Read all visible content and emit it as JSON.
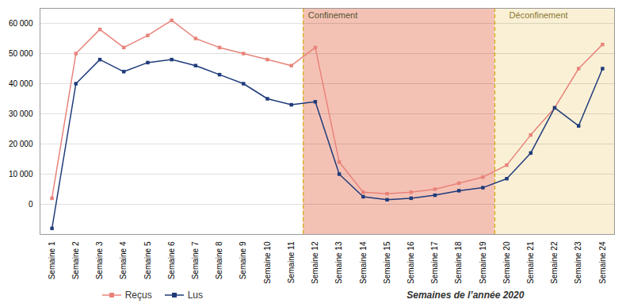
{
  "chart_data": {
    "type": "line",
    "categories": [
      "Semaine 1",
      "Semaine 2",
      "Semaine 3",
      "Semaine 4",
      "Semaine 5",
      "Semaine 6",
      "Semaine 7",
      "Semaine 8",
      "Semaine 9",
      "Semaine 10",
      "Semaine 11",
      "Semaine 12",
      "Semaine 13",
      "Semaine 14",
      "Semaine 15",
      "Semaine 16",
      "Semaine 17",
      "Semaine 18",
      "Semaine 19",
      "Semaine 20",
      "Semaine 21",
      "Semaine 22",
      "Semaine 23",
      "Semaine 24"
    ],
    "series": [
      {
        "name": "Reçus",
        "color": "#E8837A",
        "marker": "square",
        "line_style": "solid",
        "values": [
          2000,
          50000,
          58000,
          52000,
          56000,
          61000,
          55000,
          52000,
          50000,
          48000,
          46000,
          52000,
          14000,
          4000,
          3500,
          4000,
          5000,
          7000,
          9000,
          13000,
          23000,
          32000,
          45000,
          53000
        ]
      },
      {
        "name": "Lus",
        "color": "#1F3B7A",
        "marker": "square",
        "line_style": "solid",
        "values": [
          -8000,
          40000,
          48000,
          44000,
          47000,
          48000,
          46000,
          43000,
          40000,
          35000,
          33000,
          34000,
          10000,
          2500,
          1500,
          2000,
          3000,
          4500,
          5500,
          8500,
          17000,
          32000,
          26000,
          45000
        ]
      }
    ],
    "x_label": "Semaines de l’année 2020",
    "ylim": [
      -10000,
      65000
    ],
    "yticks": [
      0,
      {
        "value": 10000,
        "label": "10 000"
      },
      {
        "value": 20000,
        "label": "20 000"
      },
      {
        "value": 30000,
        "label": "30 000"
      },
      {
        "value": 40000,
        "label": "40 000"
      },
      {
        "value": 50000,
        "label": "50 000"
      },
      {
        "value": 60000,
        "label": "60 000"
      }
    ],
    "grid": true,
    "legend": "bottom",
    "annotations": [
      {
        "type": "span",
        "text": "Confinement",
        "start": "Semaine 12",
        "end": "Semaine 19",
        "color": "#F4C2B5",
        "text_color": "#555533"
      },
      {
        "type": "span",
        "text": "Déconfinement",
        "start": "Semaine 20",
        "end": "Semaine 24",
        "color": "#FAF0D5",
        "text_color": "#887733"
      },
      {
        "type": "vline",
        "at_start_of": "Semaine 12",
        "color": "#D4A800",
        "line_style": "dashed"
      },
      {
        "type": "vline",
        "at_start_of": "Semaine 20",
        "color": "#D4A800",
        "line_style": "dashed"
      }
    ]
  }
}
